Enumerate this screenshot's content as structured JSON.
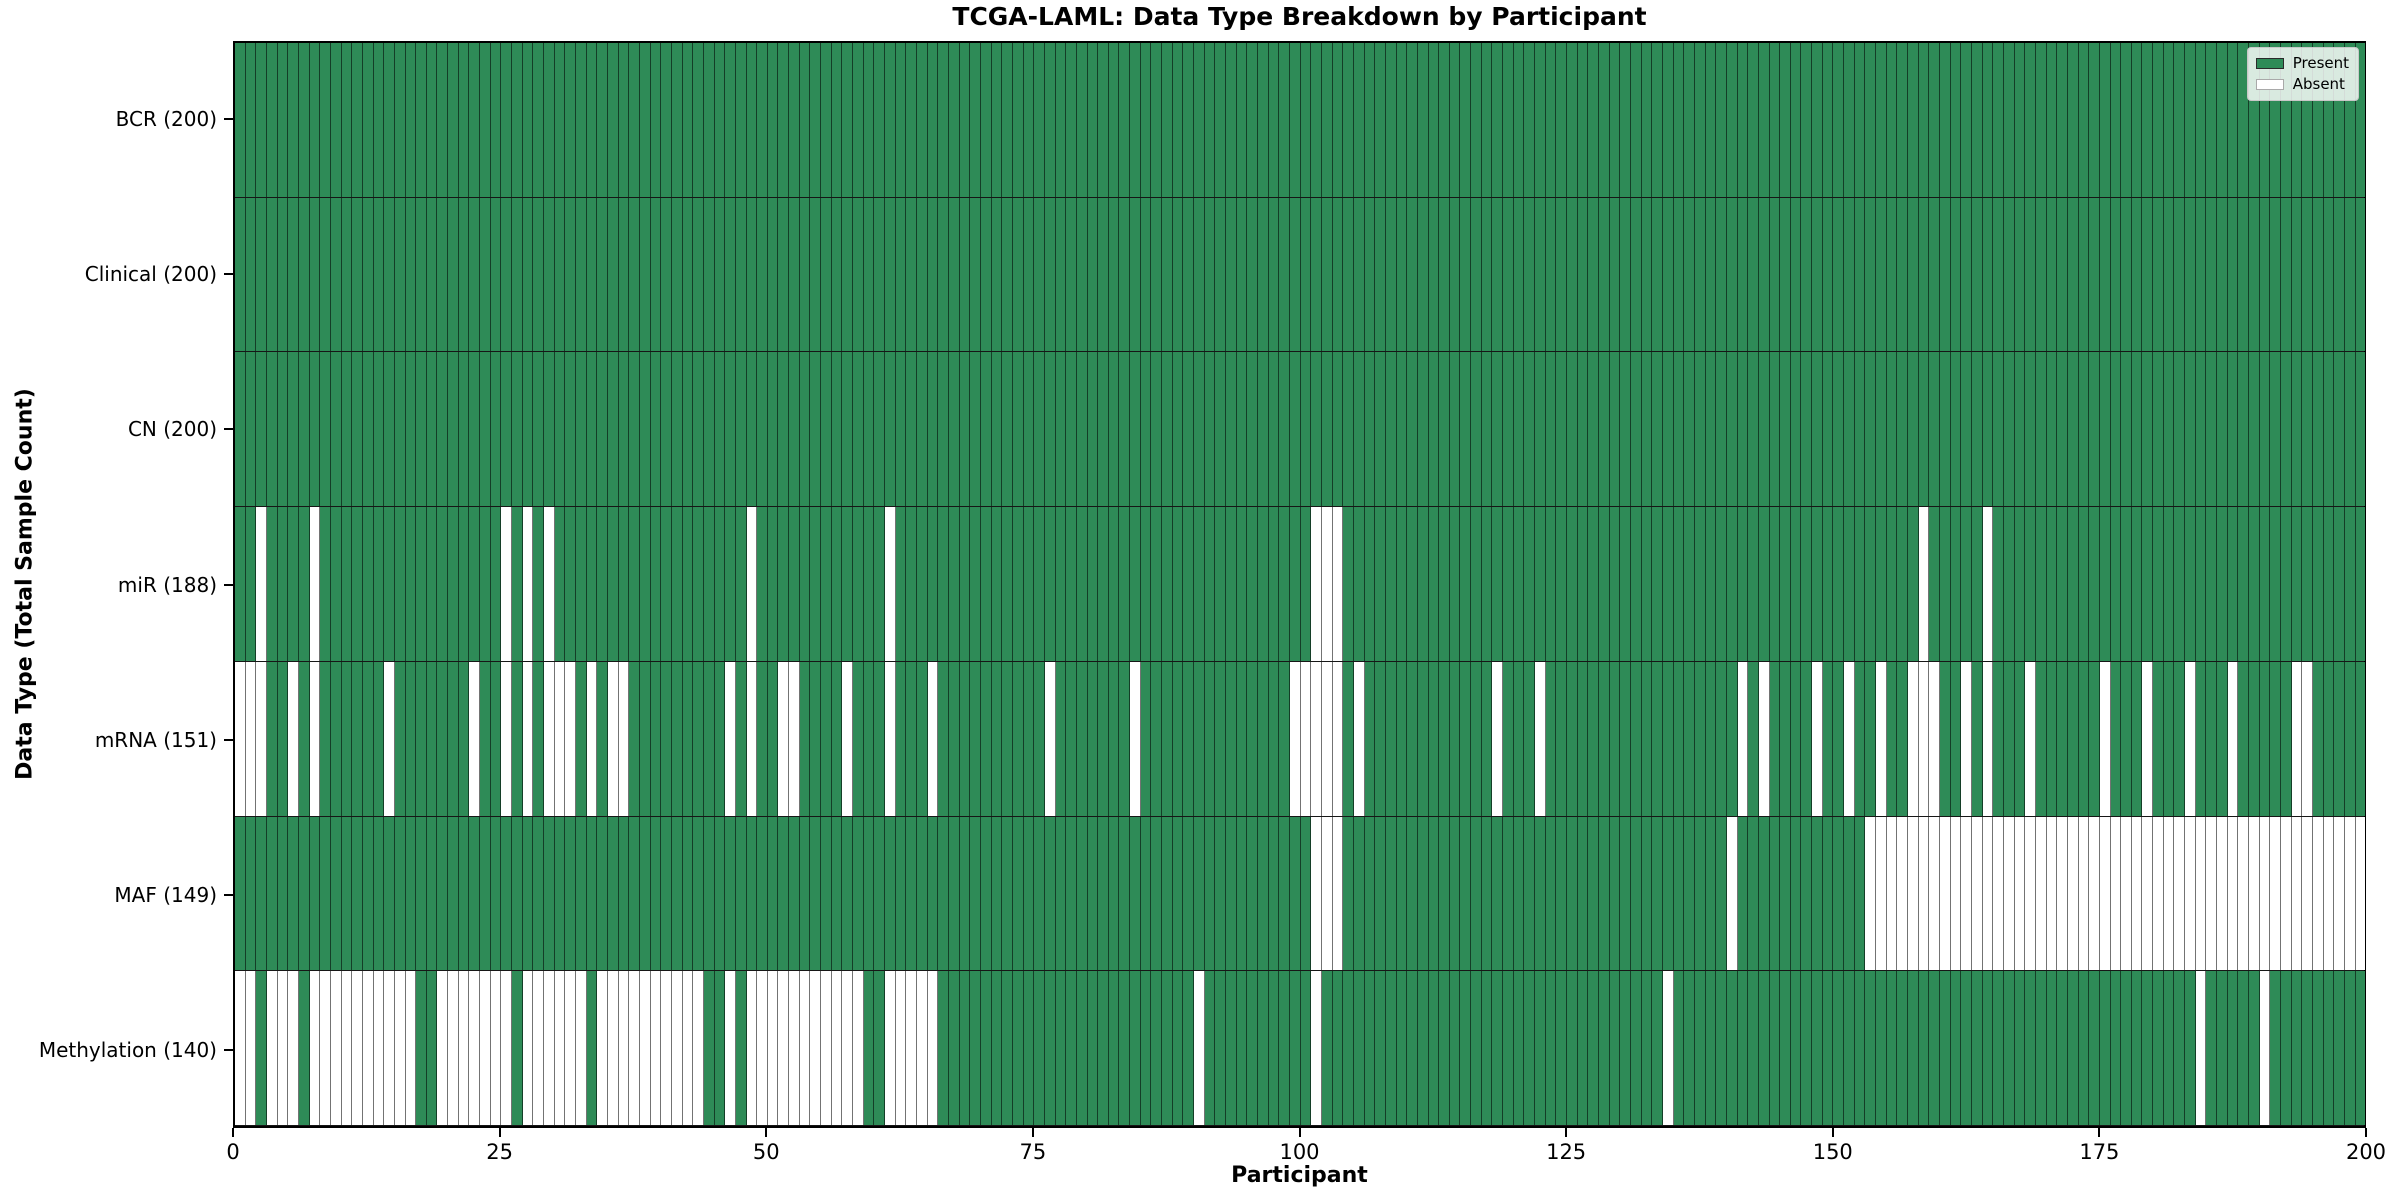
{
  "chart_data": {
    "type": "heatmap",
    "title": "TCGA-LAML: Data Type Breakdown by Participant",
    "xlabel": "Participant",
    "ylabel": "Data Type (Total Sample Count)",
    "n_participants": 200,
    "x_ticks": [
      0,
      25,
      50,
      75,
      100,
      125,
      150,
      175,
      200
    ],
    "grid": true,
    "legend_position": "upper right",
    "legend": [
      {
        "label": "Present",
        "color": "#2e8b57"
      },
      {
        "label": "Absent",
        "color": "#ffffff"
      }
    ],
    "colors": {
      "present": "#2e8b57",
      "absent": "#ffffff",
      "gridline": "rgba(0,0,0,0.55)",
      "row_separator": "#161616"
    },
    "rows": [
      {
        "name": "BCR",
        "label": "BCR (200)",
        "present_count": 200,
        "absent": []
      },
      {
        "name": "Clinical",
        "label": "Clinical (200)",
        "present_count": 200,
        "absent": []
      },
      {
        "name": "CN",
        "label": "CN (200)",
        "present_count": 200,
        "absent": []
      },
      {
        "name": "miR",
        "label": "miR (188)",
        "present_count": 188,
        "absent": [
          2,
          7,
          25,
          27,
          29,
          48,
          61,
          101,
          102,
          103,
          158,
          164
        ]
      },
      {
        "name": "mRNA",
        "label": "mRNA (151)",
        "present_count": 151,
        "absent": [
          0,
          1,
          2,
          5,
          7,
          14,
          22,
          25,
          27,
          29,
          30,
          31,
          33,
          35,
          36,
          46,
          48,
          51,
          52,
          57,
          61,
          65,
          76,
          84,
          99,
          100,
          101,
          102,
          103,
          105,
          118,
          122,
          141,
          143,
          148,
          151,
          154,
          157,
          158,
          159,
          162,
          164,
          168,
          175,
          179,
          183,
          187,
          193,
          194
        ]
      },
      {
        "name": "MAF",
        "label": "MAF (149)",
        "present_count": 149,
        "absent": [
          101,
          102,
          103,
          140,
          153,
          154,
          155,
          156,
          157,
          158,
          159,
          160,
          161,
          162,
          163,
          164,
          165,
          166,
          167,
          168,
          169,
          170,
          171,
          172,
          173,
          174,
          175,
          176,
          177,
          178,
          179,
          180,
          181,
          182,
          183,
          184,
          185,
          186,
          187,
          188,
          189,
          190,
          191,
          192,
          193,
          194,
          195,
          196,
          197,
          198,
          199
        ]
      },
      {
        "name": "Methylation",
        "label": "Methylation (140)",
        "present_count": 140,
        "absent": [
          0,
          1,
          3,
          4,
          5,
          7,
          8,
          9,
          10,
          11,
          12,
          13,
          14,
          15,
          16,
          19,
          20,
          21,
          22,
          23,
          24,
          25,
          27,
          28,
          29,
          30,
          31,
          32,
          34,
          35,
          36,
          37,
          38,
          39,
          40,
          41,
          42,
          43,
          46,
          48,
          49,
          50,
          51,
          52,
          53,
          54,
          55,
          56,
          57,
          58,
          61,
          62,
          63,
          64,
          65,
          90,
          101,
          134,
          184,
          190
        ]
      }
    ]
  }
}
